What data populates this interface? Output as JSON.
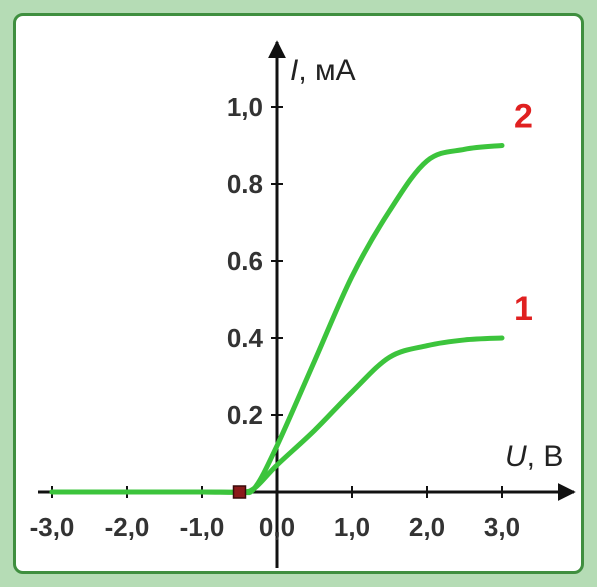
{
  "chart_data": {
    "type": "line",
    "title": "",
    "xlabel": {
      "symbol": "U",
      "unit": ", B"
    },
    "ylabel": {
      "symbol": "I",
      "unit": ", мА"
    },
    "xlim": [
      -3.3,
      3.9
    ],
    "ylim": [
      0,
      1.1
    ],
    "x_ticks": [
      {
        "value": -3.0,
        "label": "-3,0"
      },
      {
        "value": -2.0,
        "label": "-2,0"
      },
      {
        "value": -1.0,
        "label": "-1,0"
      },
      {
        "value": 0.0,
        "label": "0,0"
      },
      {
        "value": 1.0,
        "label": "1,0"
      },
      {
        "value": 2.0,
        "label": "2,0"
      },
      {
        "value": 3.0,
        "label": "3,0"
      }
    ],
    "y_ticks": [
      {
        "value": 0.2,
        "label": "0.2"
      },
      {
        "value": 0.4,
        "label": "0.4"
      },
      {
        "value": 0.6,
        "label": "0.6"
      },
      {
        "value": 0.8,
        "label": "0.8"
      },
      {
        "value": 1.0,
        "label": "1,0"
      }
    ],
    "marker_point": {
      "x": -0.5,
      "y": 0.0
    },
    "series": [
      {
        "name": "1",
        "color": "#3cc43c",
        "points": [
          [
            -3.0,
            0.0
          ],
          [
            -2.0,
            0.0
          ],
          [
            -1.0,
            0.0
          ],
          [
            -0.5,
            0.0
          ],
          [
            -0.3,
            0.01
          ],
          [
            0.0,
            0.07
          ],
          [
            0.5,
            0.16
          ],
          [
            1.0,
            0.26
          ],
          [
            1.5,
            0.35
          ],
          [
            2.0,
            0.38
          ],
          [
            2.5,
            0.395
          ],
          [
            3.0,
            0.4
          ]
        ]
      },
      {
        "name": "2",
        "color": "#3cc43c",
        "points": [
          [
            -3.0,
            0.0
          ],
          [
            -2.0,
            0.0
          ],
          [
            -1.0,
            0.0
          ],
          [
            -0.5,
            0.0
          ],
          [
            -0.3,
            0.01
          ],
          [
            0.0,
            0.12
          ],
          [
            0.5,
            0.34
          ],
          [
            1.0,
            0.56
          ],
          [
            1.5,
            0.73
          ],
          [
            2.0,
            0.86
          ],
          [
            2.5,
            0.89
          ],
          [
            3.0,
            0.9
          ]
        ]
      }
    ]
  }
}
